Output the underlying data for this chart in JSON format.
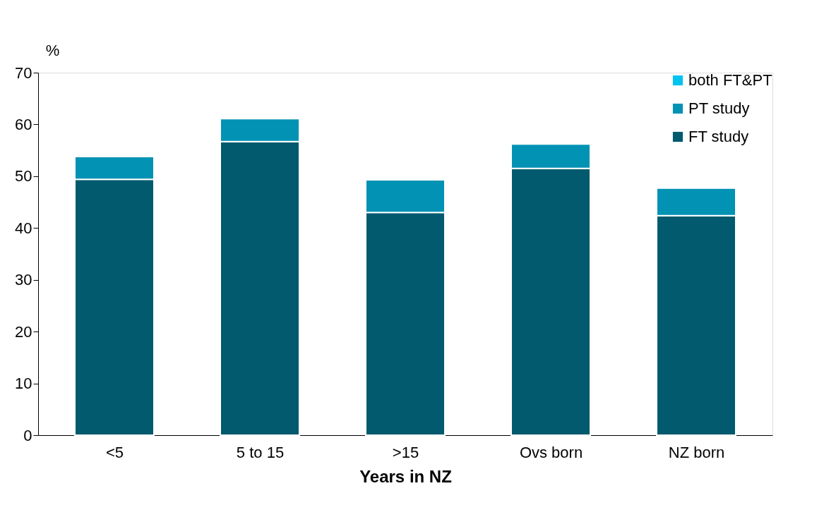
{
  "chart_data": {
    "type": "bar",
    "stacked": true,
    "xlabel": "Years in NZ",
    "ylabel": "%",
    "categories": [
      "<5",
      "5 to 15",
      ">15",
      "Ovs born",
      "NZ born"
    ],
    "series": [
      {
        "name": "FT study",
        "color": "#015a6e",
        "values": [
          49.4,
          56.7,
          43.0,
          51.5,
          42.4
        ]
      },
      {
        "name": "PT study",
        "color": "#0192b4",
        "values": [
          4.4,
          4.4,
          6.3,
          4.7,
          5.3
        ]
      },
      {
        "name": "both FT&PT",
        "color": "#00c3f0",
        "values": [
          0,
          0,
          0,
          0,
          0
        ]
      }
    ],
    "ylim": [
      0,
      70
    ],
    "yticks": [
      0,
      10,
      20,
      30,
      40,
      50,
      60,
      70
    ],
    "grid": false,
    "legend": "top right"
  }
}
